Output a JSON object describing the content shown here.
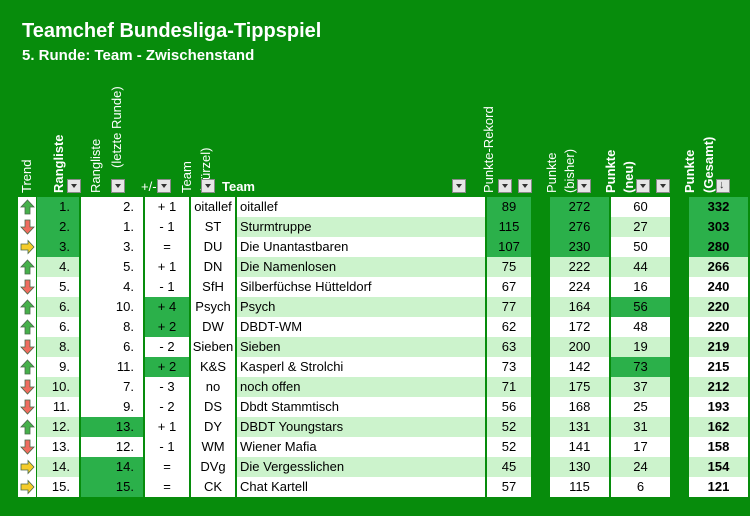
{
  "header": {
    "title": "Teamchef Bundesliga-Tippspiel",
    "subtitle": "5. Runde: Team - Zwischenstand"
  },
  "columns": {
    "trend": "Trend",
    "rangliste": "Rangliste",
    "rangliste_prev_line1": "Rangliste",
    "rangliste_prev_line2": "(letzte Runde)",
    "diff": "+/-",
    "team_abbr_line1": "Team",
    "team_abbr_line2": "(Kürzel)",
    "team": "Team",
    "rekord": "Punkte-Rekord",
    "punkte_bisher_line1": "Punkte",
    "punkte_bisher_line2": "(bisher)",
    "punkte_neu_line1": "Punkte",
    "punkte_neu_line2": "(neu)",
    "punkte_gesamt_line1": "Punkte",
    "punkte_gesamt_line2": "(Gesamt)"
  },
  "icons": {
    "up": "arrow-up-icon",
    "down": "arrow-down-icon",
    "same": "arrow-right-icon",
    "filter": "filter-dropdown-icon"
  },
  "colors": {
    "background": "#078c0c",
    "up": "#46b04a",
    "down": "#ef6b5e",
    "same": "#f5cc2a",
    "dark_cell": "#2bb04a",
    "light_cell": "#ccf3cc"
  },
  "rows": [
    {
      "trend": "up",
      "rank": "1.",
      "prev": "2.",
      "diff": "+ 1",
      "abbr": "oitallef",
      "team": "oitallef",
      "rekord": "89",
      "bisher": "272",
      "neu": "60",
      "gesamt": "332"
    },
    {
      "trend": "down",
      "rank": "2.",
      "prev": "1.",
      "diff": "- 1",
      "abbr": "ST",
      "team": "Sturmtruppe",
      "rekord": "115",
      "bisher": "276",
      "neu": "27",
      "gesamt": "303"
    },
    {
      "trend": "same",
      "rank": "3.",
      "prev": "3.",
      "diff": "=",
      "abbr": "DU",
      "team": "Die Unantastbaren",
      "rekord": "107",
      "bisher": "230",
      "neu": "50",
      "gesamt": "280"
    },
    {
      "trend": "up",
      "rank": "4.",
      "prev": "5.",
      "diff": "+ 1",
      "abbr": "DN",
      "team": "Die Namenlosen",
      "rekord": "75",
      "bisher": "222",
      "neu": "44",
      "gesamt": "266"
    },
    {
      "trend": "down",
      "rank": "5.",
      "prev": "4.",
      "diff": "- 1",
      "abbr": "SfH",
      "team": "Silberfüchse Hütteldorf",
      "rekord": "67",
      "bisher": "224",
      "neu": "16",
      "gesamt": "240"
    },
    {
      "trend": "up",
      "rank": "6.",
      "prev": "10.",
      "diff": "+ 4",
      "abbr": "Psych",
      "team": "Psych",
      "rekord": "77",
      "bisher": "164",
      "neu": "56",
      "gesamt": "220"
    },
    {
      "trend": "up",
      "rank": "6.",
      "prev": "8.",
      "diff": "+ 2",
      "abbr": "DW",
      "team": "DBDT-WM",
      "rekord": "62",
      "bisher": "172",
      "neu": "48",
      "gesamt": "220"
    },
    {
      "trend": "down",
      "rank": "8.",
      "prev": "6.",
      "diff": "- 2",
      "abbr": "Sieben",
      "team": "Sieben",
      "rekord": "63",
      "bisher": "200",
      "neu": "19",
      "gesamt": "219"
    },
    {
      "trend": "up",
      "rank": "9.",
      "prev": "11.",
      "diff": "+ 2",
      "abbr": "K&S",
      "team": "Kasperl & Strolchi",
      "rekord": "73",
      "bisher": "142",
      "neu": "73",
      "gesamt": "215"
    },
    {
      "trend": "down",
      "rank": "10.",
      "prev": "7.",
      "diff": "- 3",
      "abbr": "no",
      "team": "noch offen",
      "rekord": "71",
      "bisher": "175",
      "neu": "37",
      "gesamt": "212"
    },
    {
      "trend": "down",
      "rank": "11.",
      "prev": "9.",
      "diff": "- 2",
      "abbr": "DS",
      "team": "Dbdt Stammtisch",
      "rekord": "56",
      "bisher": "168",
      "neu": "25",
      "gesamt": "193"
    },
    {
      "trend": "up",
      "rank": "12.",
      "prev": "13.",
      "diff": "+ 1",
      "abbr": "DY",
      "team": "DBDT Youngstars",
      "rekord": "52",
      "bisher": "131",
      "neu": "31",
      "gesamt": "162"
    },
    {
      "trend": "down",
      "rank": "13.",
      "prev": "12.",
      "diff": "- 1",
      "abbr": "WM",
      "team": "Wiener Mafia",
      "rekord": "52",
      "bisher": "141",
      "neu": "17",
      "gesamt": "158"
    },
    {
      "trend": "same",
      "rank": "14.",
      "prev": "14.",
      "diff": "=",
      "abbr": "DVg",
      "team": "Die Vergesslichen",
      "rekord": "45",
      "bisher": "130",
      "neu": "24",
      "gesamt": "154"
    },
    {
      "trend": "same",
      "rank": "15.",
      "prev": "15.",
      "diff": "=",
      "abbr": "CK",
      "team": "Chat Kartell",
      "rekord": "57",
      "bisher": "115",
      "neu": "6",
      "gesamt": "121"
    }
  ]
}
